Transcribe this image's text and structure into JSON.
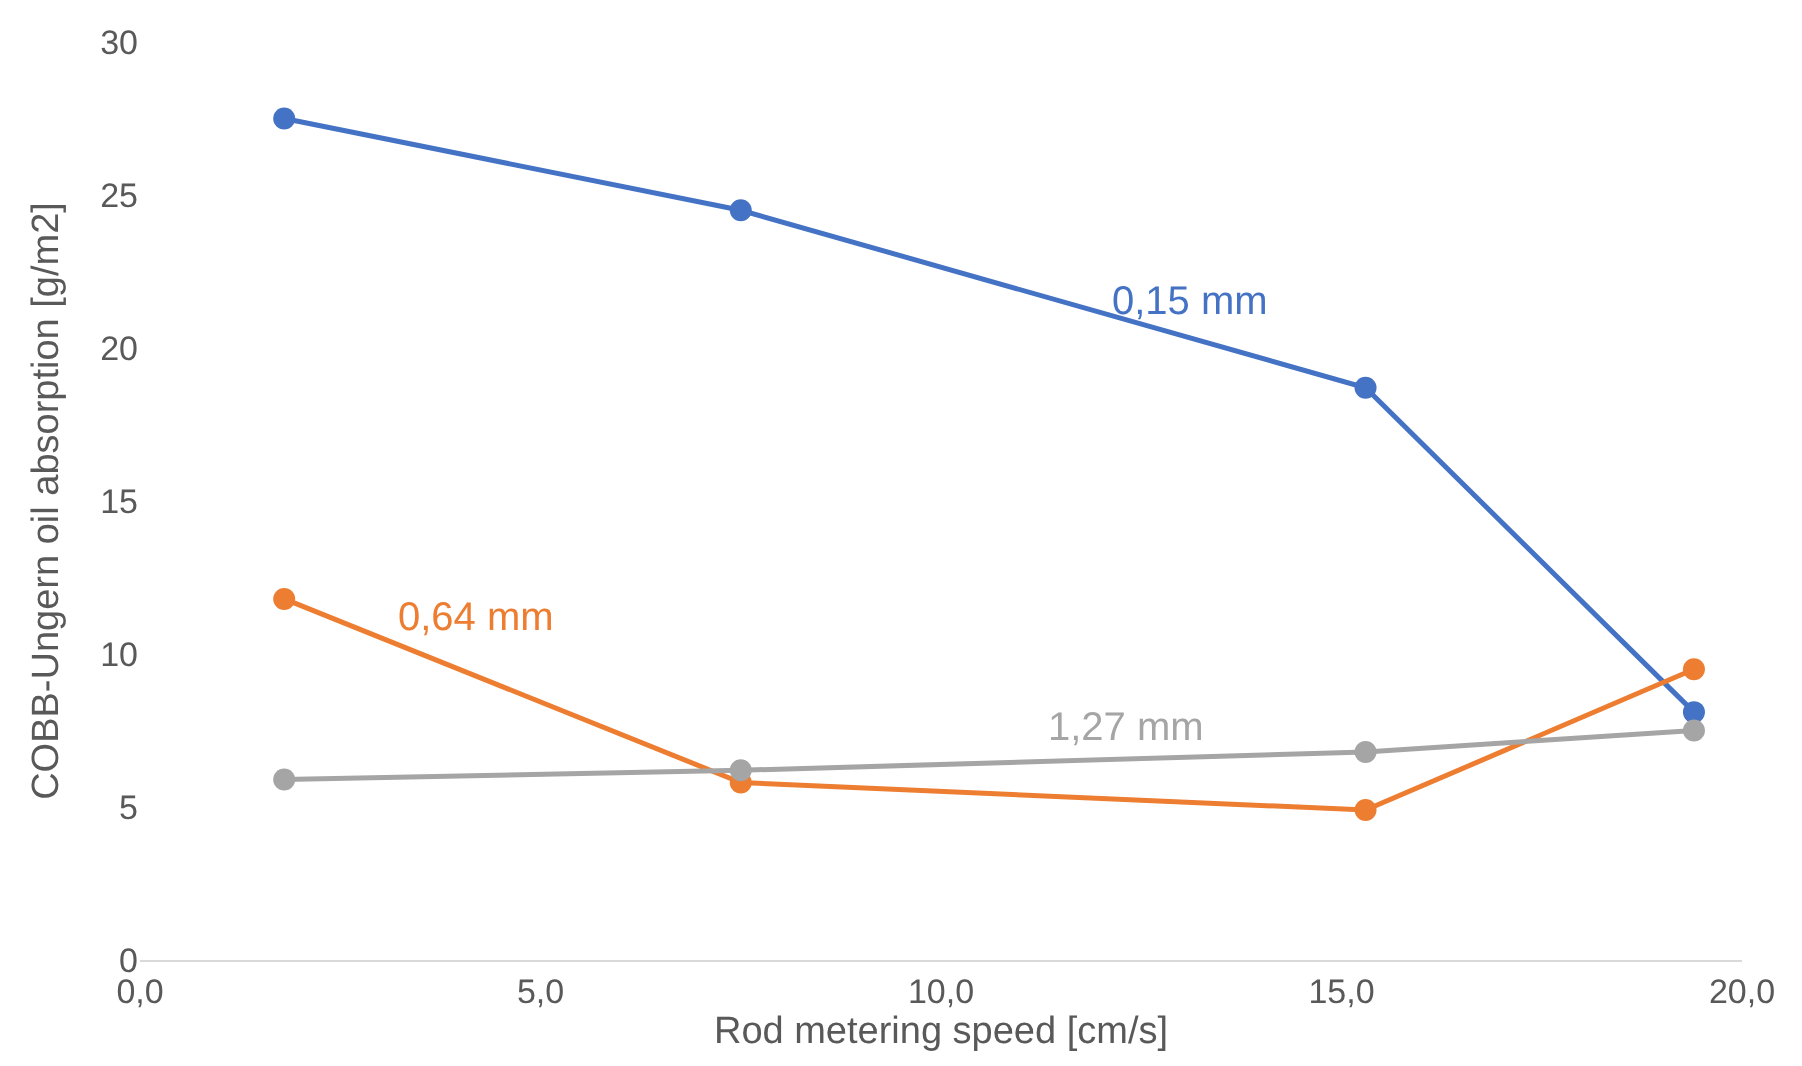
{
  "chart_data": {
    "type": "line",
    "xlabel": "Rod metering speed [cm/s]",
    "ylabel": "COBB-Ungern oil absorption [g/m2]",
    "x": [
      1.8,
      7.5,
      15.3,
      19.4
    ],
    "series": [
      {
        "name": "0,15 mm",
        "color": "#4472c4",
        "values": [
          27.5,
          24.5,
          18.7,
          8.1
        ]
      },
      {
        "name": "0,64 mm",
        "color": "#ed7d31",
        "values": [
          11.8,
          5.8,
          4.9,
          9.5
        ]
      },
      {
        "name": "1,27 mm",
        "color": "#a5a5a5",
        "values": [
          5.9,
          6.2,
          6.8,
          7.5
        ]
      }
    ],
    "xlim": [
      0,
      20
    ],
    "xticks": [
      {
        "value": 0,
        "label": "0,0"
      },
      {
        "value": 5,
        "label": "5,0"
      },
      {
        "value": 10,
        "label": "10,0"
      },
      {
        "value": 15,
        "label": "15,0"
      },
      {
        "value": 20,
        "label": "20,0"
      }
    ],
    "ylim": [
      0,
      30
    ],
    "yticks": [
      0,
      5,
      10,
      15,
      20,
      25,
      30
    ],
    "grid": false,
    "legend": false,
    "marker": "circle",
    "line_style": "solid"
  }
}
